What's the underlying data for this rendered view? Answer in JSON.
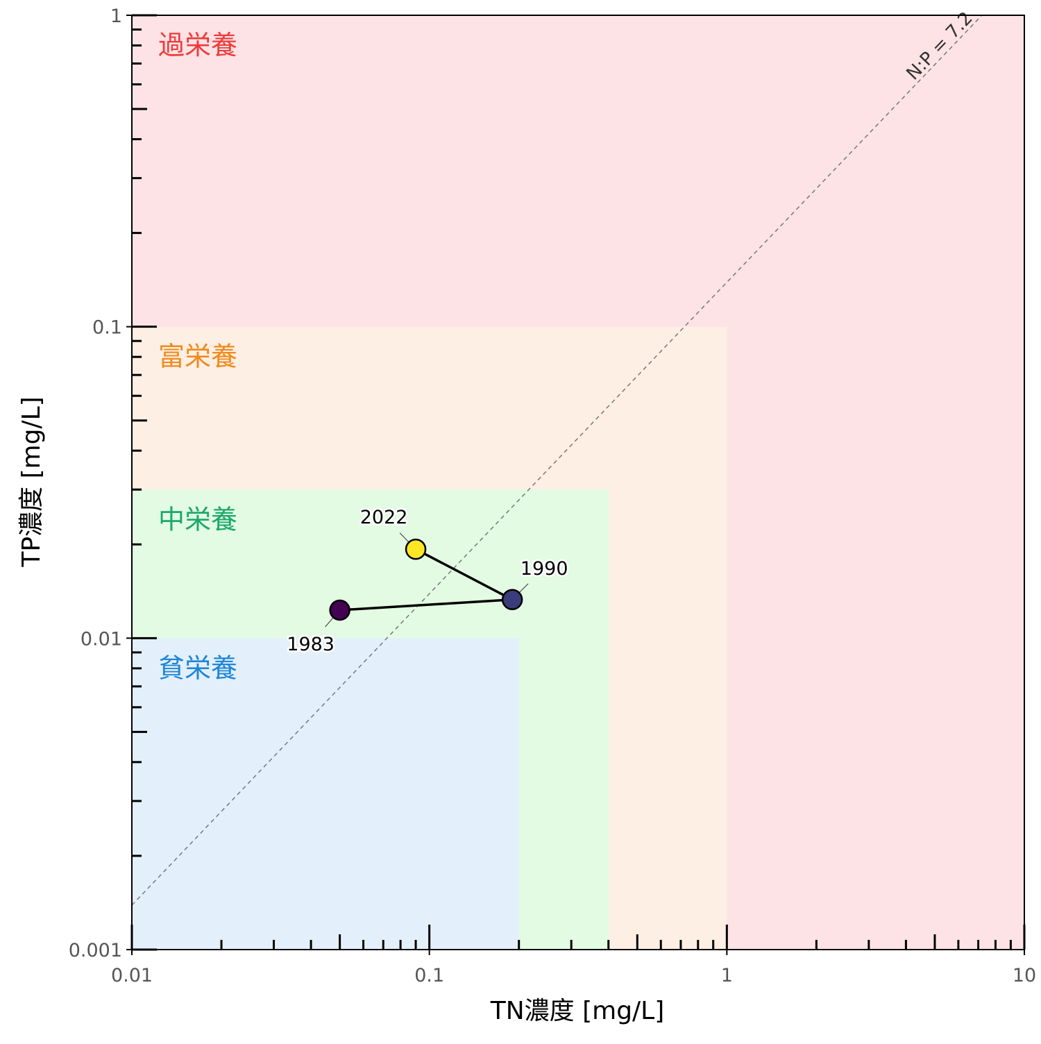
{
  "chart_data": {
    "type": "scatter",
    "x_scale": "log",
    "y_scale": "log",
    "xlim": [
      0.01,
      10
    ],
    "ylim": [
      0.001,
      1
    ],
    "xlabel": "TN濃度 [mg/L]",
    "ylabel": "TP濃度 [mg/L]",
    "x_ticks": [
      0.01,
      0.1,
      1,
      10
    ],
    "x_tick_labels": [
      "0.01",
      "0.1",
      "1",
      "10"
    ],
    "y_ticks": [
      0.001,
      0.01,
      0.1,
      1
    ],
    "y_tick_labels": [
      "0.001",
      "0.01",
      "0.1",
      "1"
    ],
    "grid": false,
    "legend": "none",
    "zones": [
      {
        "label": "過栄養",
        "tn_max": 10,
        "tp_max": 1,
        "fill": "#fde3e5",
        "label_color": "#f03a3a"
      },
      {
        "label": "富栄養",
        "tn_max": 1,
        "tp_max": 0.1,
        "fill": "#fdefe3",
        "label_color": "#f08a1c"
      },
      {
        "label": "中栄養",
        "tn_max": 0.4,
        "tp_max": 0.03,
        "fill": "#e3fbe3",
        "label_color": "#1aa86a"
      },
      {
        "label": "貧栄養",
        "tn_max": 0.2,
        "tp_max": 0.01,
        "fill": "#e3f0fc",
        "label_color": "#1f86d6"
      }
    ],
    "reference_line": {
      "label": "N:P = 7.2",
      "ratio": 7.2,
      "color": "#777777"
    },
    "series": [
      {
        "points": [
          {
            "label": "1983",
            "x": 0.05,
            "y": 0.0123,
            "color": "#440154"
          },
          {
            "label": "1990",
            "x": 0.19,
            "y": 0.0133,
            "color": "#3b3c7c"
          },
          {
            "label": "2022",
            "x": 0.09,
            "y": 0.0193,
            "color": "#fde725"
          }
        ]
      }
    ]
  }
}
